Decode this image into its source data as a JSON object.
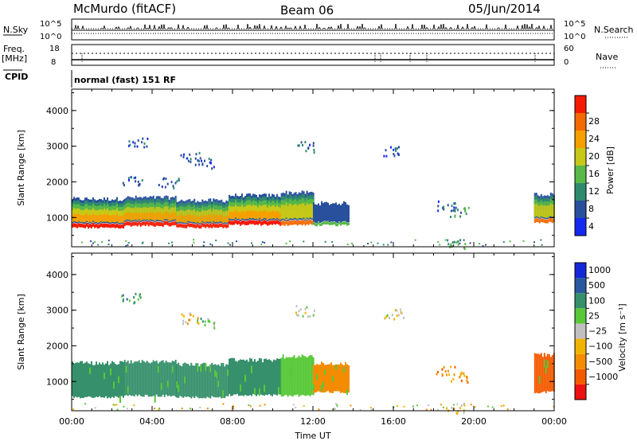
{
  "header": {
    "station": "McMurdo (fitACF)",
    "beam": "Beam 06",
    "date": "05/Jun/2014"
  },
  "strip_labels": {
    "nsky": "N.Sky",
    "nsearch": "N.Search",
    "freq": "Freq.",
    "freq_unit": "[MHz]",
    "nave": "Nave",
    "cpid": "CPID",
    "program": "normal (fast) 151 RF",
    "sky_tick_top": "10^5",
    "sky_tick_bottom": "10^0",
    "search_tick_top": "10^5",
    "search_tick_bottom": "10^0",
    "freq_tick_top": "18",
    "freq_tick_bottom": "8",
    "nave_tick_top": "60",
    "nave_tick_bottom": "0"
  },
  "colors": {
    "power_scale": [
      "#1428f0",
      "#28509c",
      "#2e8a6c",
      "#58b848",
      "#c8c818",
      "#f5a000",
      "#f56a00",
      "#f51a00"
    ],
    "velocity_scale": [
      "#ee1111",
      "#f55a00",
      "#f58c00",
      "#f0b400",
      "#c0c0c0",
      "#58c838",
      "#36906c",
      "#2a58a0",
      "#1428d8"
    ]
  },
  "chart_data": [
    {
      "type": "heatmap",
      "quantity": "power",
      "xlabel": "",
      "ylabel": "Slant Range [km]",
      "colorbar_label": "Power [dB]",
      "colorbar_ticks": [
        "4",
        "8",
        "12",
        "16",
        "20",
        "24",
        "28"
      ],
      "xlim": [
        0,
        24
      ],
      "ylim": [
        180,
        4600
      ],
      "x_ticks": [
        "00:00",
        "04:00",
        "08:00",
        "12:00",
        "16:00",
        "20:00",
        "00:00"
      ],
      "y_ticks": [
        "1000",
        "2000",
        "3000",
        "4000"
      ],
      "y_tick_values": [
        1000,
        2000,
        3000,
        4000
      ],
      "band_segments": [
        {
          "t0": 0.0,
          "t1": 2.6,
          "lo": 540,
          "hi": 1520,
          "level": 5
        },
        {
          "t0": 2.6,
          "t1": 5.2,
          "lo": 600,
          "hi": 1560,
          "level": 5
        },
        {
          "t0": 5.2,
          "t1": 7.8,
          "lo": 560,
          "hi": 1480,
          "level": 5
        },
        {
          "t0": 7.8,
          "t1": 10.4,
          "lo": 620,
          "hi": 1620,
          "level": 5
        },
        {
          "t0": 10.4,
          "t1": 12.0,
          "lo": 600,
          "hi": 1700,
          "level": 4
        },
        {
          "t0": 12.0,
          "t1": 13.8,
          "lo": 650,
          "hi": 1400,
          "level": 1
        },
        {
          "t0": 23.0,
          "t1": 24.0,
          "lo": 700,
          "hi": 1650,
          "level": 4
        }
      ],
      "scatter_cells": [
        {
          "t": 3.3,
          "r": 3150,
          "level": 1
        },
        {
          "t": 5.9,
          "r": 2700,
          "level": 1
        },
        {
          "t": 6.6,
          "r": 2550,
          "level": 1
        },
        {
          "t": 3.0,
          "r": 2050,
          "level": 1
        },
        {
          "t": 4.8,
          "r": 2000,
          "level": 1
        },
        {
          "t": 11.6,
          "r": 3000,
          "level": 1
        },
        {
          "t": 18.6,
          "r": 1350,
          "level": 1
        },
        {
          "t": 19.3,
          "r": 1200,
          "level": 2
        },
        {
          "t": 19.1,
          "r": 280,
          "level": 3
        },
        {
          "t": 16.0,
          "r": 2900,
          "level": 1
        }
      ]
    },
    {
      "type": "heatmap",
      "quantity": "velocity",
      "xlabel": "Time UT",
      "ylabel": "Slant Range [km]",
      "colorbar_label": "Velocity [m s⁻¹]",
      "colorbar_ticks": [
        "1000",
        "500",
        "100",
        "25",
        "−25",
        "−100",
        "−500",
        "−1000"
      ],
      "xlim": [
        0,
        24
      ],
      "ylim": [
        180,
        4600
      ],
      "x_ticks": [
        "00:00",
        "04:00",
        "08:00",
        "12:00",
        "16:00",
        "20:00",
        "00:00"
      ],
      "y_ticks": [
        "1000",
        "2000",
        "3000",
        "4000"
      ],
      "y_tick_values": [
        1000,
        2000,
        3000,
        4000
      ],
      "band_segments": [
        {
          "t0": 0.0,
          "t1": 2.6,
          "lo": 560,
          "hi": 1520,
          "level": 6
        },
        {
          "t0": 2.6,
          "t1": 5.2,
          "lo": 600,
          "hi": 1560,
          "level": 6
        },
        {
          "t0": 5.2,
          "t1": 7.8,
          "lo": 560,
          "hi": 1480,
          "level": 6
        },
        {
          "t0": 7.8,
          "t1": 10.4,
          "lo": 620,
          "hi": 1600,
          "level": 6
        },
        {
          "t0": 10.4,
          "t1": 12.0,
          "lo": 600,
          "hi": 1700,
          "level": 5
        },
        {
          "t0": 12.0,
          "t1": 13.8,
          "lo": 700,
          "hi": 1500,
          "level": 2
        },
        {
          "t0": 23.0,
          "t1": 24.0,
          "lo": 700,
          "hi": 1750,
          "level": 1
        }
      ],
      "scatter_cells": [
        {
          "t": 2.9,
          "r": 3350,
          "level": 6
        },
        {
          "t": 5.9,
          "r": 2800,
          "level": 3
        },
        {
          "t": 6.6,
          "r": 2650,
          "level": 5
        },
        {
          "t": 11.6,
          "r": 3000,
          "level": 4
        },
        {
          "t": 18.6,
          "r": 1300,
          "level": 2
        },
        {
          "t": 19.3,
          "r": 1150,
          "level": 2
        },
        {
          "t": 19.1,
          "r": 280,
          "level": 3
        },
        {
          "t": 16.0,
          "r": 2900,
          "level": 4
        }
      ]
    }
  ]
}
